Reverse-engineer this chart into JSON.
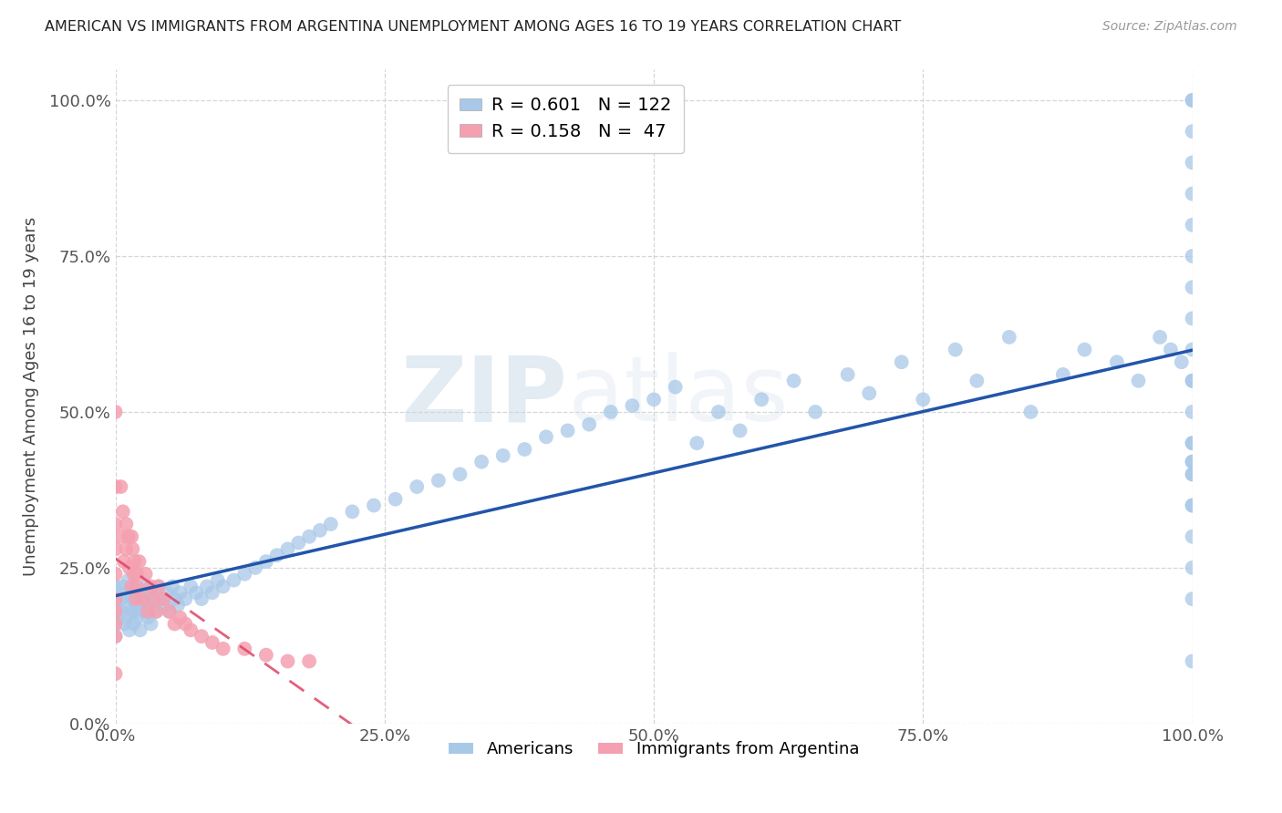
{
  "title": "AMERICAN VS IMMIGRANTS FROM ARGENTINA UNEMPLOYMENT AMONG AGES 16 TO 19 YEARS CORRELATION CHART",
  "source": "Source: ZipAtlas.com",
  "ylabel": "Unemployment Among Ages 16 to 19 years",
  "watermark_zip": "ZIP",
  "watermark_atlas": "atlas",
  "americans_R": 0.601,
  "americans_N": 122,
  "argentina_R": 0.158,
  "argentina_N": 47,
  "american_color": "#a8c8e8",
  "argentina_color": "#f4a0b0",
  "american_line_color": "#2255aa",
  "argentina_line_color": "#dd4466",
  "background_color": "#ffffff",
  "grid_color": "#cccccc",
  "xlim": [
    0,
    1
  ],
  "ylim": [
    0,
    1.05
  ],
  "xtick_labels": [
    "0.0%",
    "25.0%",
    "50.0%",
    "75.0%",
    "100.0%"
  ],
  "xtick_vals": [
    0,
    0.25,
    0.5,
    0.75,
    1.0
  ],
  "ytick_labels": [
    "0.0%",
    "25.0%",
    "50.0%",
    "75.0%",
    "100.0%"
  ],
  "ytick_vals": [
    0,
    0.25,
    0.5,
    0.75,
    1.0
  ],
  "americans_x": [
    0.0,
    0.0,
    0.0,
    0.0,
    0.0,
    0.005,
    0.005,
    0.007,
    0.008,
    0.01,
    0.01,
    0.01,
    0.012,
    0.013,
    0.015,
    0.015,
    0.016,
    0.017,
    0.018,
    0.019,
    0.02,
    0.02,
    0.022,
    0.023,
    0.025,
    0.027,
    0.028,
    0.03,
    0.03,
    0.032,
    0.033,
    0.035,
    0.038,
    0.04,
    0.042,
    0.045,
    0.048,
    0.05,
    0.053,
    0.055,
    0.058,
    0.06,
    0.065,
    0.07,
    0.075,
    0.08,
    0.085,
    0.09,
    0.095,
    0.1,
    0.11,
    0.12,
    0.13,
    0.14,
    0.15,
    0.16,
    0.17,
    0.18,
    0.19,
    0.2,
    0.22,
    0.24,
    0.26,
    0.28,
    0.3,
    0.32,
    0.34,
    0.36,
    0.38,
    0.4,
    0.42,
    0.44,
    0.46,
    0.48,
    0.5,
    0.52,
    0.54,
    0.56,
    0.58,
    0.6,
    0.63,
    0.65,
    0.68,
    0.7,
    0.73,
    0.75,
    0.78,
    0.8,
    0.83,
    0.85,
    0.88,
    0.9,
    0.93,
    0.95,
    0.97,
    0.98,
    0.99,
    1.0,
    1.0,
    1.0,
    1.0,
    1.0,
    1.0,
    1.0,
    1.0,
    1.0,
    1.0,
    1.0,
    1.0,
    1.0,
    1.0,
    1.0,
    1.0,
    1.0,
    1.0,
    1.0,
    1.0,
    1.0,
    1.0,
    1.0,
    1.0,
    1.0
  ],
  "americans_y": [
    0.2,
    0.22,
    0.18,
    0.16,
    0.14,
    0.2,
    0.18,
    0.22,
    0.16,
    0.19,
    0.21,
    0.17,
    0.23,
    0.15,
    0.2,
    0.18,
    0.22,
    0.16,
    0.2,
    0.18,
    0.19,
    0.17,
    0.21,
    0.15,
    0.2,
    0.18,
    0.22,
    0.19,
    0.17,
    0.21,
    0.16,
    0.2,
    0.18,
    0.22,
    0.2,
    0.19,
    0.21,
    0.18,
    0.22,
    0.2,
    0.19,
    0.21,
    0.2,
    0.22,
    0.21,
    0.2,
    0.22,
    0.21,
    0.23,
    0.22,
    0.23,
    0.24,
    0.25,
    0.26,
    0.27,
    0.28,
    0.29,
    0.3,
    0.31,
    0.32,
    0.34,
    0.35,
    0.36,
    0.38,
    0.39,
    0.4,
    0.42,
    0.43,
    0.44,
    0.46,
    0.47,
    0.48,
    0.5,
    0.51,
    0.52,
    0.54,
    0.45,
    0.5,
    0.47,
    0.52,
    0.55,
    0.5,
    0.56,
    0.53,
    0.58,
    0.52,
    0.6,
    0.55,
    0.62,
    0.5,
    0.56,
    0.6,
    0.58,
    0.55,
    0.62,
    0.6,
    0.58,
    0.9,
    0.95,
    1.0,
    1.0,
    0.85,
    0.8,
    0.75,
    0.7,
    0.65,
    0.6,
    0.55,
    0.5,
    0.45,
    0.4,
    0.35,
    0.3,
    0.25,
    0.2,
    0.42,
    0.45,
    0.4,
    0.35,
    0.1,
    0.55,
    0.42
  ],
  "argentina_x": [
    0.0,
    0.0,
    0.0,
    0.0,
    0.0,
    0.0,
    0.0,
    0.0,
    0.0,
    0.0,
    0.005,
    0.005,
    0.007,
    0.008,
    0.01,
    0.01,
    0.012,
    0.013,
    0.015,
    0.015,
    0.016,
    0.017,
    0.018,
    0.019,
    0.02,
    0.02,
    0.022,
    0.025,
    0.028,
    0.03,
    0.033,
    0.035,
    0.038,
    0.04,
    0.045,
    0.05,
    0.055,
    0.06,
    0.065,
    0.07,
    0.08,
    0.09,
    0.1,
    0.12,
    0.14,
    0.16,
    0.18
  ],
  "argentina_y": [
    0.5,
    0.38,
    0.32,
    0.28,
    0.24,
    0.2,
    0.18,
    0.16,
    0.14,
    0.08,
    0.38,
    0.3,
    0.34,
    0.26,
    0.32,
    0.28,
    0.3,
    0.25,
    0.3,
    0.22,
    0.28,
    0.24,
    0.26,
    0.2,
    0.24,
    0.22,
    0.26,
    0.2,
    0.24,
    0.18,
    0.22,
    0.2,
    0.18,
    0.22,
    0.2,
    0.18,
    0.16,
    0.17,
    0.16,
    0.15,
    0.14,
    0.13,
    0.12,
    0.12,
    0.11,
    0.1,
    0.1
  ]
}
